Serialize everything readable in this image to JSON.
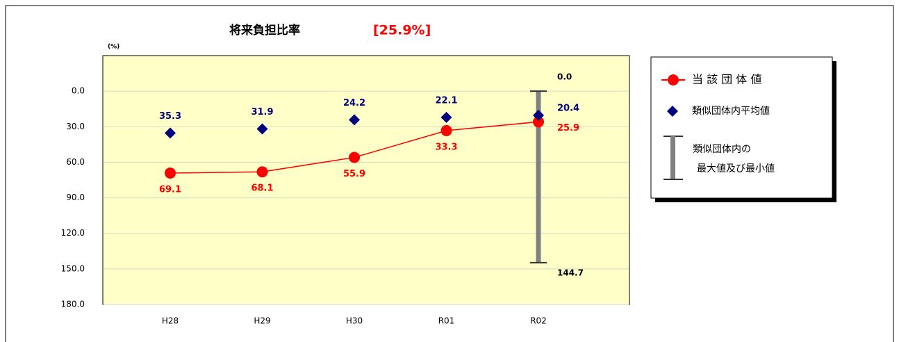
{
  "chart_data": {
    "type": "line",
    "title": "将来負担比率",
    "highlight": "[25.9%]",
    "unit_label": "(%)",
    "categories": [
      "H28",
      "H29",
      "H30",
      "R01",
      "R02"
    ],
    "ylim": [
      -30,
      180
    ],
    "y_inverted": true,
    "yticks": [
      {
        "value": 0,
        "label": "0.0"
      },
      {
        "value": 30,
        "label": "30.0"
      },
      {
        "value": 60,
        "label": "60.0"
      },
      {
        "value": 90,
        "label": "90.0"
      },
      {
        "value": 120,
        "label": "120.0"
      },
      {
        "value": 150,
        "label": "150.0"
      },
      {
        "value": 180,
        "label": "180.0"
      }
    ],
    "grid": true,
    "series": [
      {
        "name": "当 該 団 体 値",
        "color": "#ff0000",
        "marker": "circle",
        "values": [
          69.1,
          68.1,
          55.9,
          33.3,
          25.9
        ]
      },
      {
        "name": "類似団体内平均値",
        "color": "#000080",
        "marker": "diamond",
        "values": [
          35.3,
          31.9,
          24.2,
          22.1,
          20.4
        ]
      }
    ],
    "range": {
      "category": "R02",
      "name": [
        "類似団体内の",
        "最大値及び最小値"
      ],
      "color": "#808080",
      "min": 0,
      "max": 144.7,
      "value_labels": [
        "0.0",
        "144.7"
      ]
    }
  }
}
